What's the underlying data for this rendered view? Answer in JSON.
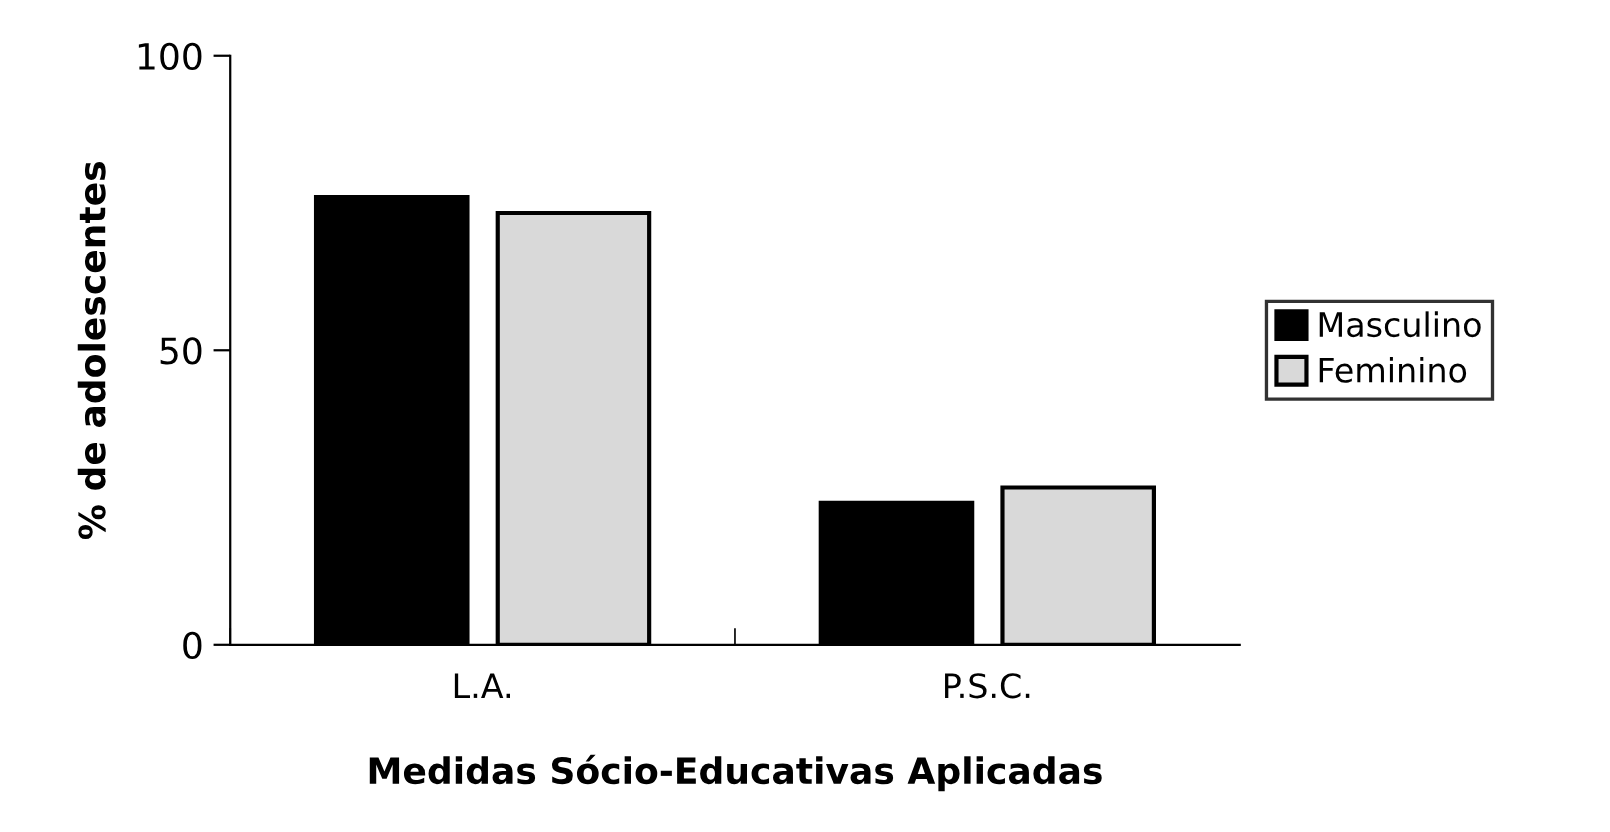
{
  "chart_data": {
    "type": "bar",
    "xlabel": "Medidas Sócio-Educativas Aplicadas",
    "ylabel": "% de adolescentes",
    "categories": [
      "L.A.",
      "P.S.C."
    ],
    "series": [
      {
        "name": "Masculino",
        "color": "#000000",
        "values": [
          76.0,
          24.1
        ]
      },
      {
        "name": "Feminino",
        "color": "#d9d9d9",
        "values": [
          73.3,
          26.7
        ]
      }
    ],
    "ylim": [
      0,
      100
    ],
    "yticks": [
      0,
      50,
      100
    ],
    "grid": false,
    "legend": "right"
  }
}
